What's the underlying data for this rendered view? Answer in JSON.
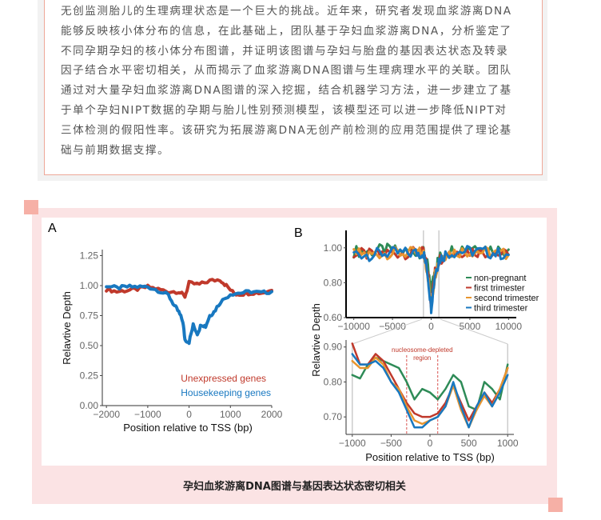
{
  "article": {
    "lines": [
      "无创监测胎儿的生理病理状态是一个巨大的挑战。近年来，研究者发现血浆游离DNA",
      "能够反映核小体分布的信息，在此基础上，团队基于孕妇血浆游离DNA，分析鉴定了",
      "不同孕期孕妇的核小体分布图谱，并证明该图谱与孕妇与胎盘的基因表达状态及转录",
      "因子结合水平密切相关，从而揭示了血浆游离DNA图谱与生理病理水平的关联。团队",
      "通过对大量孕妇血浆游离DNA图谱的深入挖掘，结合机器学习方法，进一步建立了基",
      "于单个孕妇NIPT数据的孕期与胎儿性别预测模型，该模型还可以进一步降低NIPT对",
      "三体检测的假阳性率。该研究为拓展游离DNA无创产前检测的应用范围提供了理论基",
      "础与前期数据支撑。"
    ]
  },
  "figure": {
    "caption": "孕妇血浆游离DNA图谱与基因表达状态密切相关",
    "colors": {
      "frame": "#fbe3e4",
      "corner": "#f6b0a6",
      "border": "#eea898"
    }
  },
  "chart_data": [
    {
      "panel": "A",
      "type": "line",
      "xlabel": "Position relative to TSS (bp)",
      "ylabel": "Relavtive Depth",
      "xlim": [
        -2100,
        2000
      ],
      "ylim": [
        0,
        1.3
      ],
      "xticks": [
        "−2000",
        "−1000",
        "0",
        "1000",
        "2000"
      ],
      "xtick_values": [
        -2000,
        -1000,
        0,
        1000,
        2000
      ],
      "yticks": [
        "0.00",
        "0.25",
        "0.50",
        "0.75",
        "1.00",
        "1.25"
      ],
      "ytick_values": [
        0,
        0.25,
        0.5,
        0.75,
        1.0,
        1.25
      ],
      "legend_position": "bottom-right",
      "series": [
        {
          "name": "Unexpressed genes",
          "color": "#c0392b",
          "x": [
            -2000,
            -1750,
            -1500,
            -1250,
            -1000,
            -750,
            -500,
            -250,
            -100,
            0,
            250,
            500,
            750,
            900,
            1100,
            1250,
            1500,
            1750,
            2000
          ],
          "y": [
            0.97,
            0.95,
            0.96,
            0.97,
            0.99,
            0.97,
            0.95,
            0.95,
            0.91,
            1.02,
            1.01,
            1.04,
            1.05,
            1.0,
            0.93,
            0.93,
            0.94,
            0.94,
            0.96
          ]
        },
        {
          "name": "Housekeeping genes",
          "color": "#1878c0",
          "x": [
            -2000,
            -1750,
            -1500,
            -1250,
            -1000,
            -750,
            -500,
            -350,
            -250,
            -150,
            -100,
            0,
            100,
            200,
            300,
            400,
            500,
            600,
            750,
            1000,
            1250,
            1500,
            1750,
            2000
          ],
          "y": [
            1.0,
            0.98,
            0.99,
            0.99,
            0.99,
            0.96,
            0.92,
            0.83,
            0.78,
            0.7,
            0.55,
            0.53,
            0.67,
            0.6,
            0.68,
            0.66,
            0.75,
            0.78,
            0.86,
            0.93,
            0.94,
            0.95,
            0.94,
            0.95
          ]
        }
      ]
    },
    {
      "panel": "B",
      "type": "line",
      "xlim": [
        -11000,
        11000
      ],
      "ylim": [
        0.6,
        1.1
      ],
      "xticks": [
        "−10000",
        "−5000",
        "0",
        "5000",
        "10000"
      ],
      "xtick_values": [
        -10000,
        -5000,
        0,
        5000,
        10000
      ],
      "yticks": [
        "0.60",
        "0.80",
        "1.00"
      ],
      "ytick_values": [
        0.6,
        0.8,
        1.0
      ],
      "legend_position": "right",
      "series": [
        {
          "name": "non-pregnant",
          "color": "#2e8b57",
          "x": [
            -10000,
            -8000,
            -6000,
            -4000,
            -2000,
            -1000,
            -500,
            0,
            500,
            1000,
            2000,
            4000,
            6000,
            8000,
            10000
          ],
          "y": [
            0.98,
            0.98,
            0.99,
            0.98,
            0.98,
            0.97,
            0.9,
            0.75,
            0.88,
            0.94,
            0.98,
            1.0,
            1.01,
            0.99,
            0.99
          ]
        },
        {
          "name": "first trimester",
          "color": "#c0392b",
          "x": [
            -10000,
            -8000,
            -6000,
            -4000,
            -2000,
            -1000,
            -500,
            0,
            500,
            1000,
            2000,
            4000,
            6000,
            8000,
            10000
          ],
          "y": [
            0.97,
            0.96,
            0.97,
            0.97,
            0.97,
            0.97,
            0.88,
            0.68,
            0.86,
            0.93,
            0.97,
            0.98,
            0.98,
            0.97,
            0.96
          ]
        },
        {
          "name": "second trimester",
          "color": "#e8952f",
          "x": [
            -10000,
            -8000,
            -6000,
            -4000,
            -2000,
            -1000,
            -500,
            0,
            500,
            1000,
            2000,
            4000,
            6000,
            8000,
            10000
          ],
          "y": [
            0.97,
            0.96,
            0.97,
            0.97,
            0.97,
            0.97,
            0.87,
            0.67,
            0.85,
            0.93,
            0.97,
            0.98,
            0.98,
            0.97,
            0.96
          ]
        },
        {
          "name": "third trimester",
          "color": "#1878c0",
          "x": [
            -10000,
            -8000,
            -6000,
            -4000,
            -2000,
            -1000,
            -500,
            0,
            500,
            1000,
            2000,
            4000,
            6000,
            8000,
            10000
          ],
          "y": [
            0.97,
            0.96,
            0.97,
            0.97,
            0.97,
            0.97,
            0.87,
            0.66,
            0.85,
            0.93,
            0.97,
            0.98,
            0.98,
            0.97,
            0.96
          ]
        }
      ]
    },
    {
      "panel": "B-zoom",
      "type": "line",
      "xlabel": "Position relative to TSS (bp)",
      "ylabel": "Relavtive Depth",
      "xlim": [
        -1080,
        1080
      ],
      "ylim": [
        0.65,
        0.92
      ],
      "xticks": [
        "−1000",
        "−500",
        "0",
        "500",
        "1000"
      ],
      "xtick_values": [
        -1000,
        -500,
        0,
        500,
        1000
      ],
      "yticks": [
        "0.70",
        "0.80",
        "0.90"
      ],
      "ytick_values": [
        0.7,
        0.8,
        0.9
      ],
      "annotation": {
        "text": [
          "nucleosome-depleted",
          "region"
        ],
        "x_range": [
          -300,
          100
        ],
        "color": "#c0392b"
      },
      "x": [
        -1000,
        -900,
        -800,
        -700,
        -600,
        -500,
        -400,
        -300,
        -200,
        -100,
        0,
        100,
        200,
        300,
        400,
        500,
        600,
        700,
        800,
        900,
        1000
      ],
      "series": [
        {
          "name": "non-pregnant",
          "color": "#2e8b57",
          "y": [
            0.82,
            0.81,
            0.85,
            0.87,
            0.86,
            0.85,
            0.84,
            0.8,
            0.75,
            0.78,
            0.77,
            0.75,
            0.78,
            0.82,
            0.8,
            0.73,
            0.72,
            0.8,
            0.78,
            0.75,
            0.85
          ]
        },
        {
          "name": "first trimester",
          "color": "#c0392b",
          "y": [
            0.91,
            0.85,
            0.85,
            0.88,
            0.86,
            0.82,
            0.78,
            0.74,
            0.71,
            0.7,
            0.7,
            0.71,
            0.74,
            0.79,
            0.74,
            0.69,
            0.73,
            0.77,
            0.74,
            0.78,
            0.84
          ]
        },
        {
          "name": "second trimester",
          "color": "#e8952f",
          "y": [
            0.86,
            0.84,
            0.84,
            0.87,
            0.85,
            0.8,
            0.78,
            0.73,
            0.69,
            0.68,
            0.69,
            0.7,
            0.73,
            0.79,
            0.72,
            0.67,
            0.72,
            0.76,
            0.73,
            0.78,
            0.84
          ]
        },
        {
          "name": "third trimester",
          "color": "#1878c0",
          "y": [
            0.88,
            0.85,
            0.85,
            0.86,
            0.84,
            0.8,
            0.77,
            0.72,
            0.67,
            0.67,
            0.69,
            0.7,
            0.73,
            0.8,
            0.73,
            0.67,
            0.73,
            0.77,
            0.73,
            0.77,
            0.82
          ]
        }
      ]
    }
  ],
  "labels": {
    "panel_a": "A",
    "panel_b": "B"
  }
}
